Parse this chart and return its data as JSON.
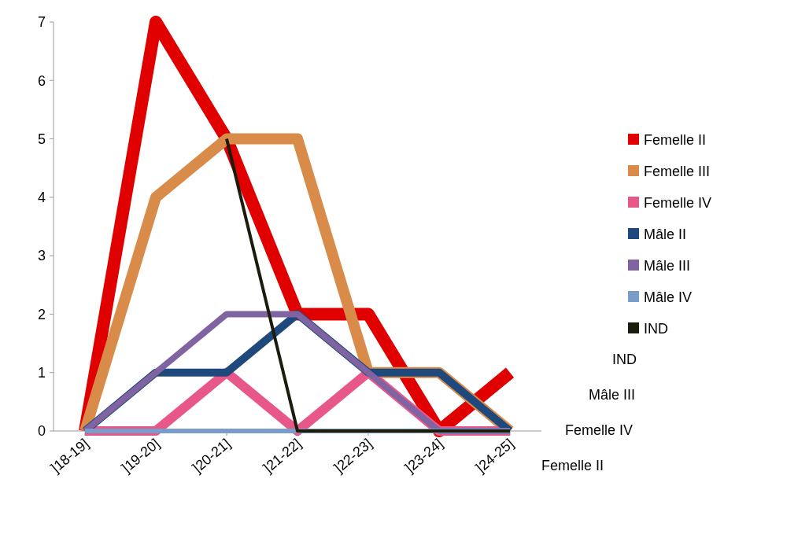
{
  "chart_data": {
    "type": "line",
    "categories": [
      "]18-19]",
      "]19-20]",
      "]20-21]",
      "]21-22]",
      "]22-23]",
      "]23-24]",
      "]24-25]"
    ],
    "series": [
      {
        "name": "Femelle II",
        "color": "#e00000",
        "values": [
          0,
          7,
          5,
          2,
          2,
          0,
          1
        ]
      },
      {
        "name": "Femelle III",
        "color": "#d98b4a",
        "values": [
          0,
          4,
          5,
          5,
          1,
          1,
          0
        ]
      },
      {
        "name": "Femelle IV",
        "color": "#e8578a",
        "values": [
          0,
          0,
          1,
          0,
          1,
          0,
          0
        ]
      },
      {
        "name": "Mâle II",
        "color": "#1f497d",
        "values": [
          0,
          1,
          1,
          2,
          1,
          1,
          0
        ]
      },
      {
        "name": "Mâle III",
        "color": "#8064a2",
        "values": [
          0,
          1,
          2,
          2,
          1,
          0,
          0
        ]
      },
      {
        "name": "Mâle IV",
        "color": "#7a9cc8",
        "values": [
          0,
          0,
          0,
          0,
          0,
          0,
          0
        ]
      },
      {
        "name": "IND",
        "color": "#1c1c0c",
        "values": [
          null,
          null,
          5,
          0,
          0,
          0,
          0
        ]
      }
    ],
    "ylim": [
      0,
      7
    ],
    "yticks": [
      0,
      1,
      2,
      3,
      4,
      5,
      6,
      7
    ],
    "grid": false,
    "legend": "right",
    "marker": "none",
    "line_style": "solid",
    "annotations": [
      "IND",
      "Mâle III",
      "Femelle IV",
      "Femelle II"
    ]
  }
}
